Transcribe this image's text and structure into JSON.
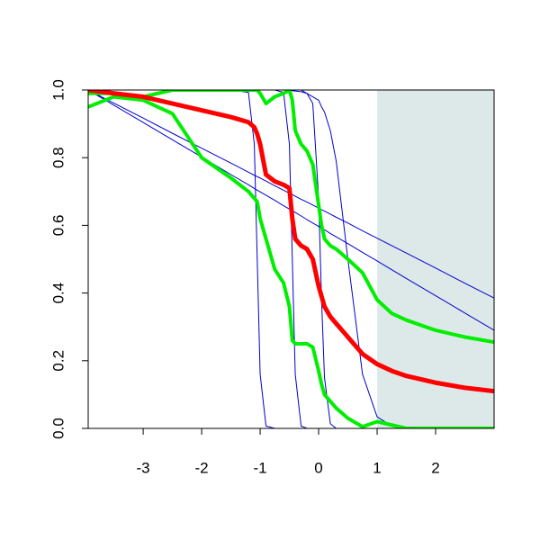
{
  "chart_data": {
    "type": "line",
    "x": [
      -3.94,
      -3.5,
      -3,
      -2.5,
      -2,
      -1.5,
      -1.2,
      -1.1,
      -1.05,
      -1,
      -0.9,
      -0.75,
      -0.6,
      -0.5,
      -0.45,
      -0.4,
      -0.3,
      -0.2,
      -0.1,
      0,
      0.05,
      0.1,
      0.2,
      0.3,
      0.5,
      0.75,
      1,
      1.25,
      1.5,
      2,
      2.5,
      3
    ],
    "series": [
      {
        "color": "#0000cc",
        "line_width": 1,
        "values": [
          1,
          0.961,
          0.917,
          0.872,
          0.828,
          0.784,
          0.757,
          0.748,
          0.744,
          0.74,
          0.731,
          0.717,
          0.704,
          0.695,
          0.691,
          0.686,
          0.677,
          0.669,
          0.66,
          0.651,
          0.646,
          0.642,
          0.633,
          0.624,
          0.607,
          0.584,
          0.562,
          0.54,
          0.518,
          0.474,
          0.429,
          0.385
        ]
      },
      {
        "color": "#0000cc",
        "line_width": 1,
        "values": [
          1,
          0.955,
          0.904,
          0.853,
          0.802,
          0.75,
          0.72,
          0.709,
          0.704,
          0.699,
          0.689,
          0.674,
          0.658,
          0.648,
          0.643,
          0.638,
          0.628,
          0.617,
          0.607,
          0.597,
          0.592,
          0.587,
          0.576,
          0.566,
          0.546,
          0.52,
          0.495,
          0.469,
          0.443,
          0.392,
          0.341,
          0.29
        ]
      },
      {
        "color": "#0000cc",
        "line_width": 1,
        "values": [
          1,
          1,
          1,
          1,
          1,
          1,
          0.993,
          0.84,
          0.5,
          0.16,
          0.007,
          0,
          0,
          0,
          0,
          0,
          0,
          0,
          0,
          0,
          0,
          0,
          0,
          0,
          0,
          0,
          0,
          0,
          0,
          0,
          0,
          0
        ]
      },
      {
        "color": "#0000cc",
        "line_width": 1,
        "values": [
          1,
          1,
          1,
          1,
          1,
          1,
          1,
          1,
          1,
          1,
          1,
          1,
          0.993,
          0.84,
          0.5,
          0.16,
          0.007,
          0,
          0,
          0,
          0,
          0,
          0,
          0,
          0,
          0,
          0,
          0,
          0,
          0,
          0,
          0
        ]
      },
      {
        "color": "#0000cc",
        "line_width": 1,
        "values": [
          1,
          1,
          1,
          1,
          1,
          1,
          1,
          1,
          1,
          1,
          1,
          1,
          1,
          1,
          1,
          1,
          1,
          0.99,
          0.96,
          0.68,
          0.38,
          0.15,
          0.014,
          0,
          0,
          0,
          0,
          0,
          0,
          0,
          0,
          0
        ]
      },
      {
        "color": "#0000cc",
        "line_width": 1,
        "values": [
          1,
          1,
          1,
          1,
          1,
          1,
          1,
          1,
          1,
          1,
          1,
          1,
          1,
          0.999,
          0.998,
          0.997,
          0.995,
          0.99,
          0.98,
          0.97,
          0.95,
          0.935,
          0.88,
          0.79,
          0.5,
          0.16,
          0.034,
          0.007,
          0.001,
          0,
          0,
          0
        ]
      },
      {
        "color": "#00ee00",
        "line_width": 4,
        "values": [
          0.99,
          0.99,
          0.98,
          1,
          1,
          1,
          1,
          1,
          1,
          0.99,
          0.96,
          0.98,
          0.99,
          1,
          0.97,
          0.88,
          0.84,
          0.82,
          0.78,
          0.66,
          0.6,
          0.56,
          0.54,
          0.53,
          0.5,
          0.46,
          0.38,
          0.34,
          0.32,
          0.29,
          0.27,
          0.255
        ]
      },
      {
        "color": "#00ee00",
        "line_width": 4,
        "values": [
          0.95,
          0.98,
          0.97,
          0.93,
          0.8,
          0.74,
          0.7,
          0.68,
          0.67,
          0.62,
          0.56,
          0.47,
          0.43,
          0.36,
          0.26,
          0.25,
          0.25,
          0.25,
          0.24,
          0.17,
          0.13,
          0.1,
          0.08,
          0.06,
          0.03,
          0.005,
          0.02,
          0.01,
          0,
          0,
          0,
          0
        ]
      },
      {
        "color": "#ff0000",
        "line_width": 5,
        "values": [
          1,
          0.99,
          0.98,
          0.96,
          0.94,
          0.92,
          0.905,
          0.89,
          0.87,
          0.84,
          0.75,
          0.73,
          0.72,
          0.71,
          0.62,
          0.56,
          0.54,
          0.53,
          0.5,
          0.42,
          0.39,
          0.36,
          0.33,
          0.31,
          0.27,
          0.22,
          0.19,
          0.17,
          0.155,
          0.135,
          0.12,
          0.11
        ]
      }
    ],
    "shaded_region": {
      "xlim": [
        1,
        3
      ],
      "color": "#dde9e9"
    },
    "xlim": [
      -3.94,
      3
    ],
    "ylim": [
      0,
      1
    ],
    "xticks": [
      -3,
      -2,
      -1,
      0,
      1,
      2
    ],
    "yticks": [
      {
        "value": 0,
        "label": "0.0"
      },
      0.2,
      0.4,
      0.6,
      0.8,
      {
        "value": 1,
        "label": "1.0"
      }
    ]
  }
}
